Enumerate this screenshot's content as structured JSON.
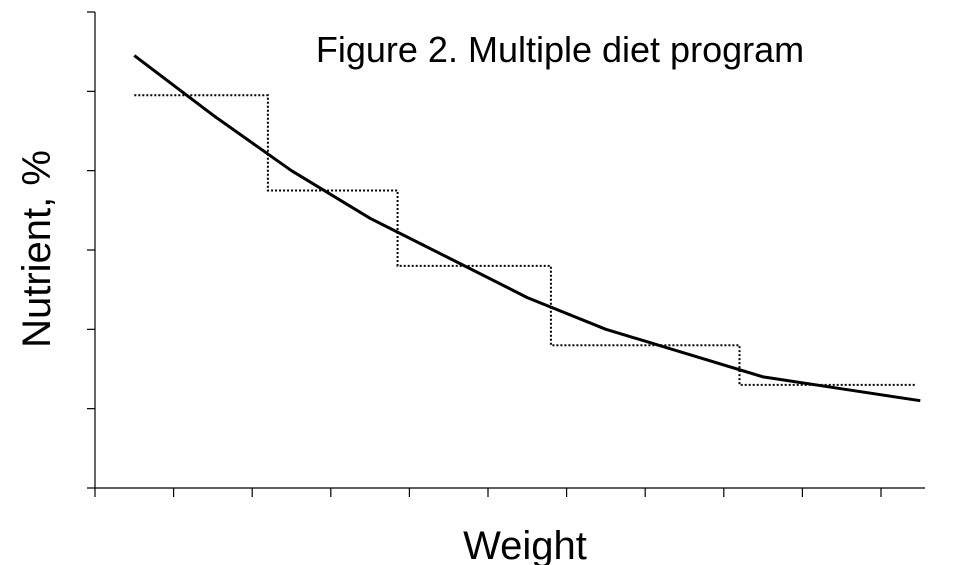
{
  "chart_data": {
    "type": "line",
    "title": "Figure 2. Multiple diet program",
    "xlabel": "Weight",
    "ylabel": "Nutrient, %",
    "xlim": [
      0,
      10.5
    ],
    "ylim": [
      0,
      6
    ],
    "grid": false,
    "tick_labels_shown": false,
    "x_tick_count": 11,
    "y_tick_count": 7,
    "series": [
      {
        "style": "solid",
        "x": [
          0.5,
          1.5,
          2.5,
          3.5,
          4.5,
          5.5,
          6.5,
          7.5,
          8.5,
          9.5,
          10.5
        ],
        "values": [
          5.45,
          4.7,
          4.0,
          3.4,
          2.9,
          2.4,
          2.0,
          1.7,
          1.4,
          1.25,
          1.1
        ]
      },
      {
        "style": "dotted",
        "x": [
          0.5,
          2.2,
          2.2,
          3.85,
          3.85,
          5.8,
          5.8,
          8.2,
          8.2,
          10.45
        ],
        "values": [
          4.95,
          4.95,
          3.75,
          3.75,
          2.8,
          2.8,
          1.8,
          1.8,
          1.3,
          1.3
        ]
      }
    ]
  }
}
